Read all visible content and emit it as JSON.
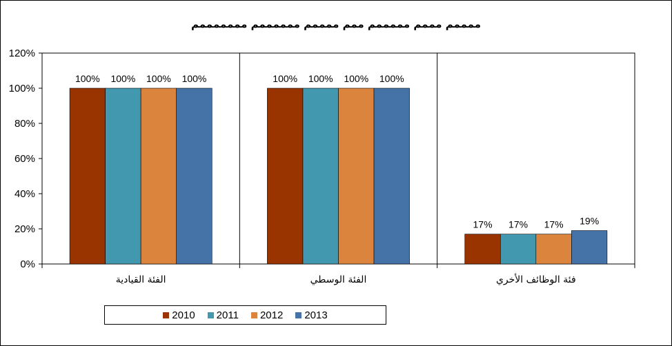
{
  "chart_data": {
    "type": "bar",
    "title": "ممممم مممم مممممم ممم ممممم ممممممم مممممممم",
    "categories": [
      "الفئة القيادية",
      "الفئة الوسطي",
      "فئة الوظائف الأخري"
    ],
    "series": [
      {
        "name": "2010",
        "values": [
          100,
          100,
          17
        ],
        "labels": [
          "100%",
          "100%",
          "17%"
        ],
        "color": "#993300"
      },
      {
        "name": "2011",
        "values": [
          100,
          100,
          17
        ],
        "labels": [
          "100%",
          "100%",
          "17%"
        ],
        "color": "#4198AF"
      },
      {
        "name": "2012",
        "values": [
          100,
          100,
          17
        ],
        "labels": [
          "100%",
          "100%",
          "17%"
        ],
        "color": "#DB843D"
      },
      {
        "name": "2013",
        "values": [
          100,
          100,
          19
        ],
        "labels": [
          "100%",
          "100%",
          "19%"
        ],
        "color": "#4572A7"
      }
    ],
    "ylim": [
      0,
      120
    ],
    "yticks": [
      0,
      20,
      40,
      60,
      80,
      100,
      120
    ],
    "ytick_labels": [
      "0%",
      "20%",
      "40%",
      "60%",
      "80%",
      "100%",
      "120%"
    ],
    "grid": false,
    "legend_position": "bottom"
  }
}
